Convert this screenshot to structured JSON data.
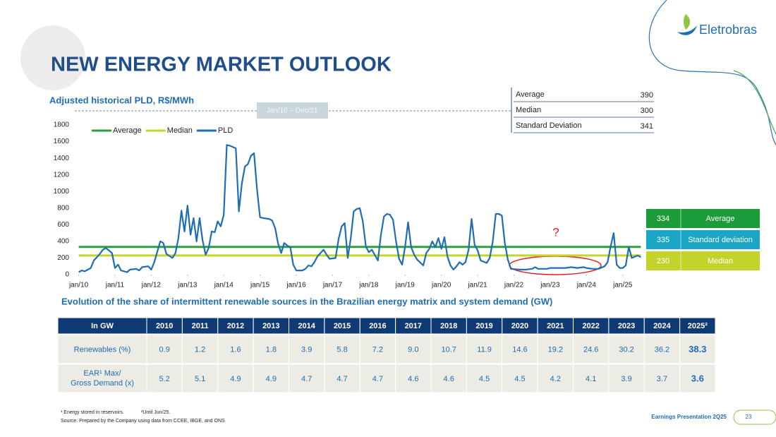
{
  "header": {
    "title": "NEW ENERGY MARKET OUTLOOK",
    "logo": "Eletrobras"
  },
  "chart_data": {
    "type": "line",
    "title": "Adjusted historical PLD, R$/MWh",
    "period_label": "Jan/10 – Dec/21",
    "xlim": [
      -2,
      188
    ],
    "xticks": [
      {
        "value": 0,
        "label": "jan/10"
      },
      {
        "value": 12,
        "label": "jan/11"
      },
      {
        "value": 24,
        "label": "jan/12"
      },
      {
        "value": 36,
        "label": "jan/13"
      },
      {
        "value": 48,
        "label": "jan/14"
      },
      {
        "value": 60,
        "label": "jan/15"
      },
      {
        "value": 72,
        "label": "jan/16"
      },
      {
        "value": 84,
        "label": "jan/17"
      },
      {
        "value": 96,
        "label": "jan/18"
      },
      {
        "value": 108,
        "label": "jan/19"
      },
      {
        "value": 120,
        "label": "jan/20"
      },
      {
        "value": 132,
        "label": "jan/21"
      },
      {
        "value": 144,
        "label": "jan/22"
      },
      {
        "value": 156,
        "label": "jan/23"
      },
      {
        "value": 168,
        "label": "jan/24"
      },
      {
        "value": 180,
        "label": "jan/25"
      }
    ],
    "ylim": [
      0,
      1800
    ],
    "yticks": [
      0,
      200,
      400,
      600,
      800,
      1000,
      1200,
      1400,
      1600,
      1800
    ],
    "grid": false,
    "legend": "top-left",
    "annotations": [
      "?"
    ],
    "series": [
      {
        "name": "Average",
        "color": "#2e9e3e",
        "x": [
          0,
          186
        ],
        "values": [
          334,
          334
        ]
      },
      {
        "name": "Median",
        "color": "#c6d52c",
        "x": [
          0,
          186
        ],
        "values": [
          230,
          230
        ]
      },
      {
        "name": "PLD",
        "color": "#1f6db5",
        "x": [
          0,
          1,
          2,
          4,
          5,
          7,
          8,
          9,
          11,
          12,
          13,
          14,
          16,
          17,
          19,
          20,
          21,
          23,
          24,
          25,
          27,
          28,
          29,
          31,
          32,
          33,
          34,
          35,
          36,
          37,
          38,
          39,
          40,
          41,
          42,
          43,
          44,
          45,
          46,
          47,
          48,
          49,
          50,
          52,
          53,
          54,
          55,
          56,
          57,
          58,
          59,
          60,
          61,
          63,
          64,
          65,
          66,
          67,
          68,
          69,
          70,
          71,
          72,
          74,
          75,
          76,
          77,
          78,
          79,
          81,
          82,
          83,
          85,
          86,
          87,
          88,
          89,
          90,
          91,
          92,
          93,
          94,
          95,
          96,
          97,
          99,
          100,
          101,
          102,
          103,
          104,
          105,
          106,
          107,
          108,
          109,
          110,
          111,
          112,
          114,
          115,
          116,
          117,
          118,
          119,
          120,
          121,
          122,
          123,
          124,
          125,
          126,
          127,
          128,
          129,
          130,
          131,
          132,
          133,
          135,
          136,
          137,
          138,
          139,
          140,
          141,
          142,
          143,
          146,
          148,
          150,
          151,
          152,
          155,
          156,
          161,
          163,
          165,
          167,
          168,
          170,
          172,
          174,
          175,
          176,
          177,
          178,
          179,
          180,
          181,
          182,
          183,
          185,
          186
        ],
        "values": [
          30,
          50,
          40,
          80,
          170,
          250,
          300,
          320,
          260,
          80,
          120,
          50,
          30,
          60,
          70,
          50,
          90,
          100,
          60,
          150,
          400,
          380,
          250,
          200,
          260,
          440,
          770,
          520,
          830,
          480,
          680,
          400,
          680,
          410,
          240,
          320,
          520,
          510,
          640,
          580,
          720,
          1560,
          1550,
          1520,
          760,
          1100,
          1300,
          1330,
          1430,
          1460,
          1030,
          690,
          680,
          670,
          650,
          560,
          370,
          260,
          380,
          350,
          330,
          120,
          50,
          50,
          70,
          110,
          100,
          150,
          220,
          300,
          240,
          190,
          200,
          430,
          580,
          620,
          200,
          430,
          760,
          790,
          800,
          640,
          340,
          270,
          300,
          170,
          480,
          700,
          730,
          720,
          660,
          400,
          190,
          120,
          340,
          630,
          330,
          240,
          180,
          110,
          260,
          310,
          400,
          330,
          440,
          310,
          450,
          220,
          110,
          60,
          100,
          150,
          120,
          150,
          300,
          670,
          360,
          290,
          170,
          140,
          200,
          400,
          730,
          730,
          710,
          380,
          180,
          70,
          60,
          60,
          70,
          90,
          70,
          70,
          80,
          80,
          90,
          80,
          90,
          80,
          70,
          70,
          100,
          150,
          340,
          500,
          120,
          80,
          80,
          110,
          330,
          200,
          230,
          210
        ]
      }
    ]
  },
  "period_stats": {
    "rows": [
      {
        "label": "Average",
        "value": 390
      },
      {
        "label": "Median",
        "value": 300
      },
      {
        "label": "Standard Deviation",
        "value": 341
      }
    ]
  },
  "recent_stats": {
    "rows": [
      {
        "value": 334,
        "label": "Average",
        "color": "#1b9b3a"
      },
      {
        "value": 335,
        "label": "Standard deviation",
        "color": "#1aa6c4"
      },
      {
        "value": 230,
        "label": "Median",
        "color": "#c3d32c"
      }
    ]
  },
  "table": {
    "title": "Evolution of the share of intermittent renewable sources in the Brazilian energy matrix and system demand (GW)",
    "header": [
      "In GW",
      "2010",
      "2011",
      "2012",
      "2013",
      "2014",
      "2015",
      "2016",
      "2017",
      "2018",
      "2019",
      "2020",
      "2021",
      "2022",
      "2023",
      "2024",
      "2025²"
    ],
    "rows": [
      [
        "Renewables (%)",
        "0.9",
        "1.2",
        "1.6",
        "1.8",
        "3.9",
        "5.8",
        "7.2",
        "9.0",
        "10.7",
        "11.9",
        "14.6",
        "19.2",
        "24.6",
        "30.2",
        "36.2",
        "38.3"
      ],
      [
        [
          "EAR¹ Max/",
          "Gross Demand (x)"
        ],
        "5.2",
        "5.1",
        "4.9",
        "4.9",
        "4.7",
        "4.7",
        "4.7",
        "4.6",
        "4.6",
        "4.5",
        "4.5",
        "4.2",
        "4.1",
        "3.9",
        "3.7",
        "3.6"
      ]
    ]
  },
  "footnotes": [
    "¹ Energy stored in reservoirs.",
    "²Until Jun/25.",
    "Source: Prepared by the Company using data from CCEE, IBGE, and ONS"
  ],
  "footer": {
    "text": "Earnings Presentation 2Q25",
    "page": "23"
  }
}
